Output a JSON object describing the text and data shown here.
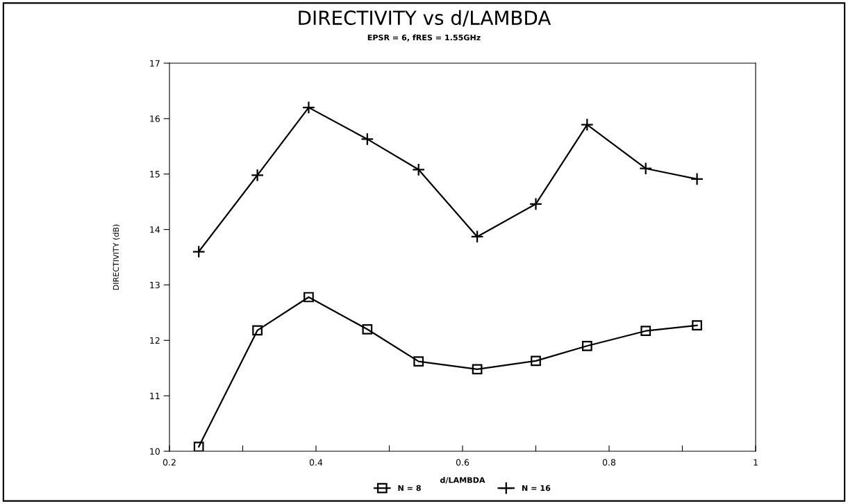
{
  "chart_data": {
    "type": "line",
    "title": "DIRECTIVITY vs d/LAMBDA",
    "subtitle": "EPSR = 6, fRES = 1.55GHz",
    "xlabel": "d/LAMBDA",
    "ylabel": "DIRECTIVITY (dB)",
    "x": [
      0.24,
      0.32,
      0.39,
      0.47,
      0.54,
      0.62,
      0.7,
      0.77,
      0.85,
      0.92
    ],
    "series": [
      {
        "name": "N = 8",
        "color": "#000000",
        "marker": "square",
        "values": [
          10.08,
          12.18,
          12.78,
          12.2,
          11.62,
          11.48,
          11.63,
          11.9,
          12.17,
          12.27
        ]
      },
      {
        "name": "N = 16",
        "color": "#000000",
        "marker": "cross",
        "values": [
          13.6,
          14.98,
          16.2,
          15.63,
          15.08,
          13.87,
          14.46,
          15.89,
          15.1,
          14.91
        ]
      }
    ],
    "xlim": [
      0.2,
      1
    ],
    "ylim": [
      10,
      17
    ],
    "xticks": [
      0.2,
      {
        "value": 0.3,
        "label": null
      },
      0.4,
      {
        "value": 0.5,
        "label": null
      },
      0.6,
      {
        "value": 0.7,
        "label": null
      },
      0.8,
      {
        "value": 0.9,
        "label": null
      },
      1
    ],
    "yticks": [
      10,
      11,
      12,
      13,
      14,
      15,
      16,
      17
    ],
    "grid": false,
    "legend": "bottom",
    "line_style": "solid"
  }
}
